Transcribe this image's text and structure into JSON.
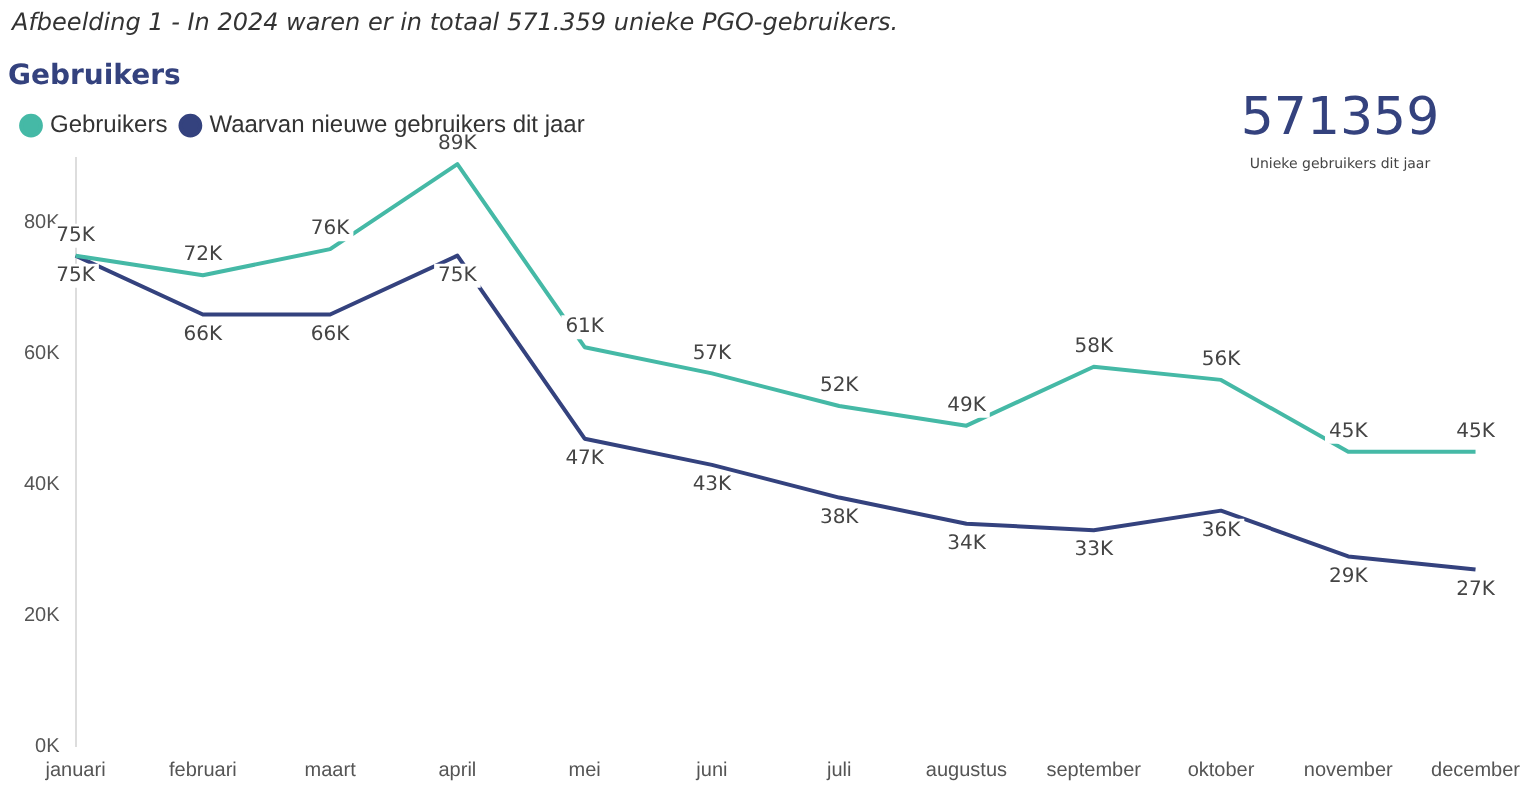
{
  "chart_data": {
    "type": "line",
    "title": "Gebruikers",
    "annotations": [
      "Afbeelding 1 - In 2024 waren er in totaal 571.359 unieke PGO-gebruikers.",
      "571359",
      "Unieke gebruikers dit jaar"
    ],
    "categories": [
      "januari",
      "februari",
      "maart",
      "april",
      "mei",
      "juni",
      "juli",
      "augustus",
      "september",
      "oktober",
      "november",
      "december"
    ],
    "series": [
      {
        "name": "Gebruikers",
        "color": "#45b9a6",
        "values": [
          75,
          72,
          76,
          89,
          61,
          57,
          52,
          49,
          58,
          56,
          45,
          45
        ],
        "value_labels": [
          "75K",
          "72K",
          "76K",
          "89K",
          "61K",
          "57K",
          "52K",
          "49K",
          "58K",
          "56K",
          "45K",
          "45K"
        ]
      },
      {
        "name": "Waarvan nieuwe gebruikers dit jaar",
        "color": "#34427e",
        "values": [
          75,
          66,
          66,
          75,
          47,
          43,
          38,
          34,
          33,
          36,
          29,
          27
        ],
        "value_labels": [
          "75K",
          "66K",
          "66K",
          "75K",
          "47K",
          "43K",
          "38K",
          "34K",
          "33K",
          "36K",
          "29K",
          "27K"
        ]
      }
    ],
    "ylim": [
      0,
      90
    ],
    "yticks": [
      {
        "value": 0,
        "label": "0K"
      },
      {
        "value": 20,
        "label": "20K"
      },
      {
        "value": 40,
        "label": "40K"
      },
      {
        "value": 60,
        "label": "60K"
      },
      {
        "value": 80,
        "label": "80K"
      }
    ],
    "grid": false,
    "legend": "top left",
    "marker": "none",
    "line_style": "solid"
  }
}
